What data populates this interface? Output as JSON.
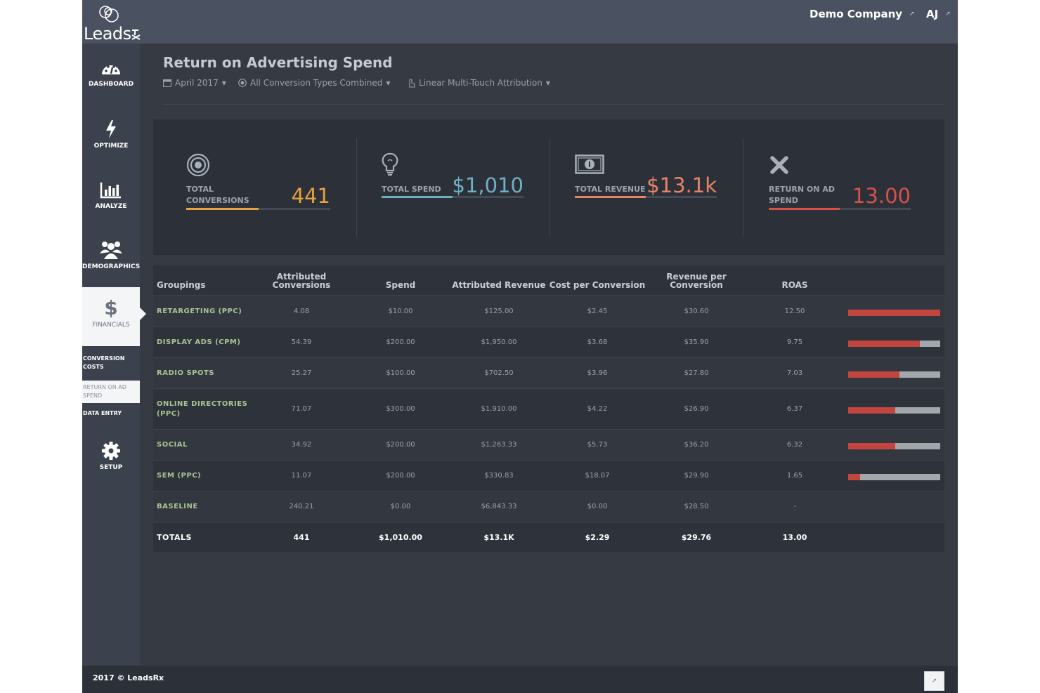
{
  "app": {
    "logo_text": "Leads",
    "company": "Demo Company",
    "user_initials": "AJ"
  },
  "sidebar": {
    "items": [
      {
        "label": "DASHBOARD",
        "icon": "dashboard-gauge-icon"
      },
      {
        "label": "OPTIMIZE",
        "icon": "lightning-bolt-icon"
      },
      {
        "label": "ANALYZE",
        "icon": "bar-chart-icon"
      },
      {
        "label": "DEMOGRAPHICS",
        "icon": "people-group-icon"
      },
      {
        "label": "FINANCIALS",
        "icon": "dollar-sign-icon"
      },
      {
        "label": "SETUP",
        "icon": "gear-icon"
      }
    ],
    "sub_items": [
      {
        "label": "Conversion Costs"
      },
      {
        "label": "Return on Ad Spend"
      },
      {
        "label": "Data Entry"
      }
    ]
  },
  "header": {
    "title": "Return on Advertising Spend",
    "filters": [
      {
        "label": "April 2017",
        "icon": "calendar-icon"
      },
      {
        "label": "All Conversion Types Combined",
        "icon": "target-icon"
      },
      {
        "label": "Linear Multi-Touch Attribution",
        "icon": "hand-pointer-icon"
      }
    ]
  },
  "kpis": [
    {
      "label_line1": "TOTAL",
      "label_line2": "CONVERSIONS",
      "value": "441",
      "color": "#e8a13c",
      "fill_percent": 50,
      "icon": "target-icon"
    },
    {
      "label_line1": "TOTAL SPEND",
      "label_line2": "",
      "value": "$1,010",
      "color": "#6fb0c7",
      "fill_percent": 50,
      "icon": "lightbulb-icon"
    },
    {
      "label_line1": "TOTAL REVENUE",
      "label_line2": "",
      "value": "$13.1k",
      "color": "#e88466",
      "fill_percent": 50,
      "icon": "money-bill-icon"
    },
    {
      "label_line1": "RETURN ON AD",
      "label_line2": "SPEND",
      "value": "13.00",
      "color": "#d8504a",
      "fill_percent": 50,
      "icon": "close-x-icon"
    }
  ],
  "table": {
    "headers": {
      "groupings": "Groupings",
      "attributed_conversions_1": "Attributed",
      "attributed_conversions_2": "Conversions",
      "spend": "Spend",
      "attributed_revenue": "Attributed Revenue",
      "cost_per_conversion": "Cost per Conversion",
      "revenue_per_conversion_1": "Revenue per",
      "revenue_per_conversion_2": "Conversion",
      "roas": "ROAS"
    },
    "rows": [
      {
        "grouping": "Retargeting (PPC)",
        "conversions": "4.08",
        "spend": "$10.00",
        "revenue": "$125.00",
        "cpc": "$2.45",
        "rpc": "$30.60",
        "roas": "12.50",
        "roas_bar": 1.0
      },
      {
        "grouping": "Display Ads (CPM)",
        "conversions": "54.39",
        "spend": "$200.00",
        "revenue": "$1,950.00",
        "cpc": "$3.68",
        "rpc": "$35.90",
        "roas": "9.75",
        "roas_bar": 0.78
      },
      {
        "grouping": "Radio Spots",
        "conversions": "25.27",
        "spend": "$100.00",
        "revenue": "$702.50",
        "cpc": "$3.96",
        "rpc": "$27.80",
        "roas": "7.03",
        "roas_bar": 0.56
      },
      {
        "grouping": "Online Directories (PPC)",
        "conversions": "71.07",
        "spend": "$300.00",
        "revenue": "$1,910.00",
        "cpc": "$4.22",
        "rpc": "$26.90",
        "roas": "6.37",
        "roas_bar": 0.51
      },
      {
        "grouping": "Social",
        "conversions": "34.92",
        "spend": "$200.00",
        "revenue": "$1,263.33",
        "cpc": "$5.73",
        "rpc": "$36.20",
        "roas": "6.32",
        "roas_bar": 0.51
      },
      {
        "grouping": "SEM (PPC)",
        "conversions": "11.07",
        "spend": "$200.00",
        "revenue": "$330.83",
        "cpc": "$18.07",
        "rpc": "$29.90",
        "roas": "1.65",
        "roas_bar": 0.13
      },
      {
        "grouping": "Baseline",
        "conversions": "240.21",
        "spend": "$0.00",
        "revenue": "$6,843.33",
        "cpc": "$0.00",
        "rpc": "$28.50",
        "roas": "-",
        "roas_bar": null
      }
    ],
    "totals": {
      "grouping": "Totals",
      "conversions": "441",
      "spend": "$1,010.00",
      "revenue": "$13.1K",
      "cpc": "$2.29",
      "rpc": "$29.76",
      "roas": "13.00"
    }
  },
  "footer": {
    "text": "2017 © LeadsRx"
  }
}
